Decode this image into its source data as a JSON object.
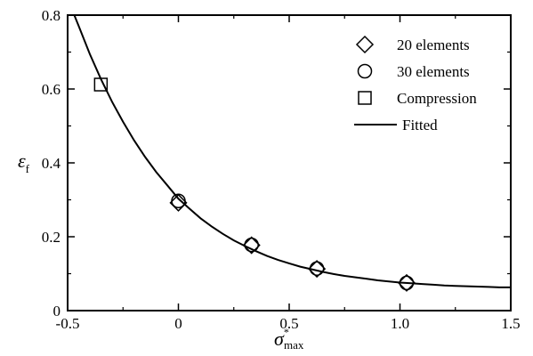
{
  "chart_data": {
    "type": "scatter",
    "xlabel": {
      "main": "σ",
      "sub": "max",
      "sup": "*"
    },
    "ylabel": {
      "main": "ε",
      "sub": "f"
    },
    "xlim": [
      -0.5,
      1.5
    ],
    "ylim": [
      0,
      0.8
    ],
    "xticks": [
      "-0.5",
      "0",
      "0.5",
      "1.0",
      "1.5"
    ],
    "xtick_values": [
      -0.5,
      0,
      0.5,
      1.0,
      1.5
    ],
    "yticks": [
      "0",
      "0.2",
      "0.4",
      "0.6",
      "0.8"
    ],
    "ytick_values": [
      0,
      0.2,
      0.4,
      0.6,
      0.8
    ],
    "grid": false,
    "legend_position": "top-right",
    "series": [
      {
        "name": "20 elements",
        "marker": "diamond",
        "points": [
          [
            0.0,
            0.292
          ],
          [
            0.33,
            0.177
          ],
          [
            0.625,
            0.113
          ],
          [
            1.03,
            0.075
          ]
        ]
      },
      {
        "name": "30 elements",
        "marker": "circle",
        "points": [
          [
            0.0,
            0.297
          ],
          [
            0.33,
            0.178
          ],
          [
            0.625,
            0.114
          ],
          [
            1.03,
            0.075
          ]
        ]
      },
      {
        "name": "Compression",
        "marker": "square",
        "points": [
          [
            -0.35,
            0.612
          ]
        ]
      },
      {
        "name": "Fitted",
        "marker": "line",
        "curve": [
          [
            -0.47,
            0.8
          ],
          [
            -0.45,
            0.77
          ],
          [
            -0.4,
            0.695
          ],
          [
            -0.35,
            0.627
          ],
          [
            -0.3,
            0.566
          ],
          [
            -0.25,
            0.511
          ],
          [
            -0.2,
            0.461
          ],
          [
            -0.15,
            0.416
          ],
          [
            -0.1,
            0.375
          ],
          [
            -0.05,
            0.339
          ],
          [
            0.0,
            0.303
          ],
          [
            0.05,
            0.276
          ],
          [
            0.1,
            0.25
          ],
          [
            0.15,
            0.228
          ],
          [
            0.2,
            0.208
          ],
          [
            0.25,
            0.19
          ],
          [
            0.3,
            0.175
          ],
          [
            0.35,
            0.161
          ],
          [
            0.4,
            0.148
          ],
          [
            0.45,
            0.137
          ],
          [
            0.5,
            0.128
          ],
          [
            0.55,
            0.119
          ],
          [
            0.6,
            0.112
          ],
          [
            0.65,
            0.105
          ],
          [
            0.7,
            0.099
          ],
          [
            0.75,
            0.094
          ],
          [
            0.8,
            0.09
          ],
          [
            0.85,
            0.086
          ],
          [
            0.9,
            0.082
          ],
          [
            0.95,
            0.079
          ],
          [
            1.0,
            0.076
          ],
          [
            1.05,
            0.074
          ],
          [
            1.1,
            0.072
          ],
          [
            1.15,
            0.07
          ],
          [
            1.2,
            0.068
          ],
          [
            1.25,
            0.067
          ],
          [
            1.3,
            0.066
          ],
          [
            1.35,
            0.065
          ],
          [
            1.4,
            0.064
          ],
          [
            1.45,
            0.063
          ],
          [
            1.5,
            0.063
          ]
        ]
      }
    ]
  }
}
